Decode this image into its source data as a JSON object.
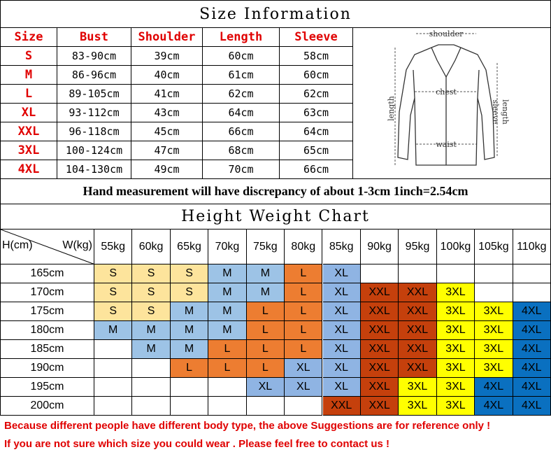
{
  "size_info": {
    "title": "Size Information",
    "headers": [
      "Size",
      "Bust",
      "Shoulder",
      "Length",
      "Sleeve"
    ],
    "rows": [
      [
        "S",
        "83-90cm",
        "39cm",
        "60cm",
        "58cm"
      ],
      [
        "M",
        "86-96cm",
        "40cm",
        "61cm",
        "60cm"
      ],
      [
        "L",
        "89-105cm",
        "41cm",
        "62cm",
        "62cm"
      ],
      [
        "XL",
        "93-112cm",
        "43cm",
        "64cm",
        "63cm"
      ],
      [
        "XXL",
        "96-118cm",
        "45cm",
        "66cm",
        "64cm"
      ],
      [
        "3XL",
        "100-124cm",
        "47cm",
        "68cm",
        "65cm"
      ],
      [
        "4XL",
        "104-130cm",
        "49cm",
        "70cm",
        "66cm"
      ]
    ],
    "row_colors": [
      "#fde49c",
      "#9dc3e6",
      "#ed7d31",
      "#8fb4e3",
      "#c5400c",
      "#ffff00",
      "#0a70c0"
    ]
  },
  "diagram": {
    "shoulder": "shoulder",
    "chest": "chest",
    "length": "length",
    "waist": "waist",
    "sleeve": "sleeve",
    "sleeve_length": "length"
  },
  "note": "Hand measurement will have discrepancy of about 1-3cm  1inch=2.54cm",
  "chart": {
    "title": "Height Weight Chart",
    "corner_h": "H(cm)",
    "corner_w": "W(kg)",
    "weights": [
      "55kg",
      "60kg",
      "65kg",
      "70kg",
      "75kg",
      "80kg",
      "85kg",
      "90kg",
      "95kg",
      "100kg",
      "105kg",
      "110kg"
    ],
    "heights": [
      "165cm",
      "170cm",
      "175cm",
      "180cm",
      "185cm",
      "190cm",
      "195cm",
      "200cm"
    ],
    "cells": [
      [
        "S",
        "S",
        "S",
        "M",
        "M",
        "L",
        "XL",
        null,
        null,
        null,
        null,
        null
      ],
      [
        "S",
        "S",
        "S",
        "M",
        "M",
        "L",
        "XL",
        "XXL",
        "XXL",
        "3XL",
        null,
        null
      ],
      [
        "S",
        "S",
        "M",
        "M",
        "L",
        "L",
        "XL",
        "XXL",
        "XXL",
        "3XL",
        "3XL",
        "4XL"
      ],
      [
        "M",
        "M",
        "M",
        "M",
        "L",
        "L",
        "XL",
        "XXL",
        "XXL",
        "3XL",
        "3XL",
        "4XL"
      ],
      [
        null,
        "M",
        "M",
        "L",
        "L",
        "L",
        "XL",
        "XXL",
        "XXL",
        "3XL",
        "3XL",
        "4XL"
      ],
      [
        null,
        null,
        "L",
        "L",
        "L",
        "XL",
        "XL",
        "XXL",
        "XXL",
        "3XL",
        "3XL",
        "4XL"
      ],
      [
        null,
        null,
        null,
        null,
        "XL",
        "XL",
        "XL",
        "XXL",
        "3XL",
        "3XL",
        "4XL",
        "4XL"
      ],
      [
        null,
        null,
        null,
        null,
        null,
        null,
        "XXL",
        "XXL",
        "3XL",
        "3XL",
        "4XL",
        "4XL"
      ]
    ]
  },
  "footer": [
    "Because different people have different body type, the above Suggestions are for reference only !",
    "If you are not sure which size you could wear . Please feel free to contact us !"
  ]
}
